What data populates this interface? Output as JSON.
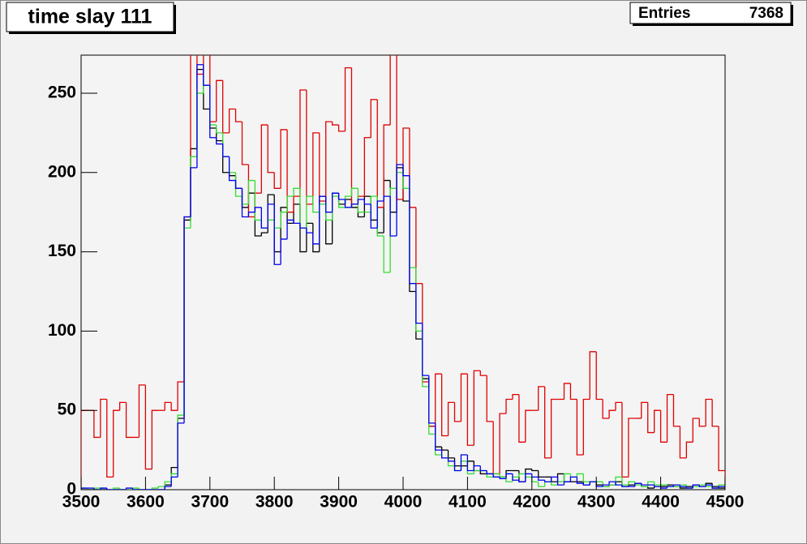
{
  "chart_data": {
    "type": "histogram",
    "title": "time slay 111",
    "stats": {
      "label": "Entries",
      "value": 7368
    },
    "bins": [
      3500,
      3510,
      3520,
      3530,
      3540,
      3550,
      3560,
      3570,
      3580,
      3590,
      3600,
      3610,
      3620,
      3630,
      3640,
      3650,
      3660,
      3670,
      3680,
      3690,
      3700,
      3710,
      3720,
      3730,
      3740,
      3750,
      3760,
      3770,
      3780,
      3790,
      3800,
      3810,
      3820,
      3830,
      3840,
      3850,
      3860,
      3870,
      3880,
      3890,
      3900,
      3910,
      3920,
      3930,
      3940,
      3950,
      3960,
      3970,
      3980,
      3990,
      4000,
      4010,
      4020,
      4030,
      4040,
      4050,
      4060,
      4070,
      4080,
      4090,
      4100,
      4110,
      4120,
      4130,
      4140,
      4150,
      4160,
      4170,
      4180,
      4190,
      4200,
      4210,
      4220,
      4230,
      4240,
      4250,
      4260,
      4270,
      4280,
      4290,
      4300,
      4310,
      4320,
      4330,
      4340,
      4350,
      4360,
      4370,
      4380,
      4390,
      4400,
      4410,
      4420,
      4430,
      4440,
      4450,
      4460,
      4470,
      4480,
      4490,
      4500
    ],
    "series": [
      {
        "color": "#000000",
        "values": [
          0,
          0,
          0,
          0,
          0,
          0,
          0,
          0,
          0,
          0,
          0,
          0,
          0,
          3,
          14,
          45,
          170,
          215,
          265,
          240,
          228,
          220,
          200,
          198,
          190,
          178,
          187,
          160,
          162,
          186,
          150,
          178,
          168,
          180,
          150,
          168,
          150,
          185,
          155,
          187,
          180,
          183,
          178,
          172,
          185,
          170,
          162,
          195,
          175,
          203,
          182,
          125,
          95,
          70,
          40,
          27,
          25,
          20,
          15,
          15,
          18,
          12,
          10,
          10,
          8,
          8,
          12,
          12,
          5,
          13,
          12,
          8,
          8,
          5,
          10,
          5,
          5,
          5,
          3,
          5,
          3,
          2,
          3,
          5,
          2,
          3,
          4,
          2,
          1,
          2,
          2,
          3,
          2,
          1,
          2,
          3,
          2,
          4,
          2,
          1
        ]
      },
      {
        "color": "#e00000",
        "values": [
          50,
          50,
          33,
          57,
          8,
          50,
          55,
          33,
          33,
          66,
          13,
          50,
          50,
          55,
          50,
          68,
          172,
          290,
          262,
          285,
          232,
          258,
          225,
          240,
          232,
          205,
          172,
          187,
          230,
          200,
          190,
          227,
          175,
          185,
          252,
          180,
          225,
          182,
          232,
          230,
          226,
          266,
          180,
          185,
          222,
          246,
          178,
          230,
          290,
          183,
          228,
          178,
          130,
          68,
          40,
          73,
          34,
          55,
          43,
          73,
          28,
          75,
          72,
          43,
          10,
          48,
          57,
          60,
          30,
          50,
          50,
          65,
          20,
          57,
          57,
          67,
          57,
          22,
          57,
          87,
          57,
          45,
          50,
          55,
          8,
          45,
          45,
          55,
          36,
          50,
          30,
          60,
          40,
          20,
          30,
          45,
          40,
          57,
          40,
          12
        ]
      },
      {
        "color": "#33dd33",
        "values": [
          1,
          0,
          1,
          1,
          0,
          1,
          0,
          0,
          1,
          0,
          0,
          1,
          2,
          5,
          10,
          47,
          165,
          210,
          250,
          255,
          230,
          225,
          210,
          200,
          185,
          180,
          195,
          170,
          165,
          170,
          165,
          175,
          185,
          190,
          165,
          185,
          175,
          180,
          170,
          185,
          178,
          185,
          190,
          175,
          175,
          185,
          160,
          137,
          190,
          200,
          190,
          140,
          100,
          65,
          35,
          22,
          20,
          15,
          12,
          18,
          10,
          12,
          12,
          8,
          10,
          8,
          5,
          8,
          10,
          8,
          5,
          2,
          5,
          3,
          5,
          10,
          8,
          10,
          5,
          5,
          5,
          2,
          3,
          8,
          3,
          5,
          3,
          2,
          5,
          3,
          3,
          2,
          2,
          3,
          1,
          2,
          3,
          2,
          1,
          3
        ]
      },
      {
        "color": "#0000ee",
        "values": [
          1,
          1,
          0,
          1,
          0,
          0,
          0,
          1,
          0,
          0,
          0,
          0,
          0,
          2,
          8,
          42,
          172,
          203,
          268,
          255,
          222,
          218,
          210,
          195,
          190,
          172,
          175,
          178,
          165,
          180,
          142,
          158,
          170,
          168,
          165,
          162,
          155,
          185,
          175,
          187,
          183,
          178,
          180,
          183,
          180,
          165,
          182,
          185,
          160,
          205,
          198,
          130,
          105,
          72,
          42,
          25,
          20,
          18,
          12,
          22,
          12,
          15,
          12,
          10,
          8,
          7,
          10,
          6,
          5,
          10,
          8,
          6,
          5,
          8,
          3,
          5,
          8,
          4,
          3,
          5,
          2,
          3,
          5,
          3,
          2,
          2,
          4,
          3,
          3,
          2,
          1,
          2,
          3,
          2,
          1,
          3,
          2,
          3,
          1,
          2
        ]
      }
    ],
    "xlim": [
      3500,
      4500
    ],
    "xticks": [
      3500,
      3600,
      3700,
      3800,
      3900,
      4000,
      4100,
      4200,
      4300,
      4400,
      4500
    ],
    "ylim": [
      0,
      274
    ],
    "yticks": [
      0,
      50,
      100,
      150,
      200,
      250
    ],
    "grid": false
  }
}
